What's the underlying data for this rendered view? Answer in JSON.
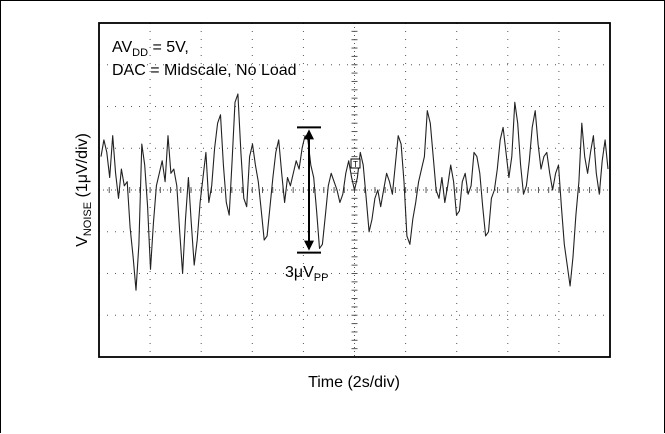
{
  "chart_data": {
    "type": "line",
    "annotation_line1_main": "AV",
    "annotation_line1_sub": "DD",
    "annotation_line1_rest": " = 5V,",
    "annotation_line2": "DAC = Midscale, No Load",
    "xlabel": "Time (2s/div)",
    "ylabel_main": "V",
    "ylabel_sub": "NOISE",
    "ylabel_rest": " (1μV/div)",
    "pp_label_main": "3μV",
    "pp_label_sub": "PP",
    "pp_top": 1.5,
    "pp_bottom": -1.5,
    "trigger_marker": "T",
    "grid": true,
    "xlim": [
      0,
      10
    ],
    "ylim": [
      -4,
      4
    ],
    "x_divisions": 10,
    "y_divisions": 8,
    "series": [
      {
        "values": [
          0.8,
          1.2,
          0.9,
          0.3,
          1.3,
          0.4,
          -0.2,
          0.5,
          0.1,
          0.2,
          -0.9,
          -1.6,
          -2.4,
          -1.3,
          1.1,
          0.6,
          -0.4,
          -1.9,
          -0.8,
          0.1,
          0.4,
          0.7,
          0.2,
          1.3,
          0.4,
          0.5,
          0.1,
          -1.0,
          -2.0,
          -0.7,
          0.3,
          -0.8,
          -1.8,
          -1.2,
          -0.3,
          0.3,
          0.9,
          -0.3,
          0.1,
          1.0,
          1.6,
          1.8,
          0.6,
          -0.3,
          -0.6,
          0.7,
          2.1,
          2.3,
          0.9,
          -0.2,
          -0.4,
          0.8,
          1.1,
          0.6,
          0.2,
          -0.5,
          -1.2,
          -1.1,
          -0.4,
          0.3,
          0.9,
          1.2,
          0.4,
          -0.3,
          0.3,
          0.1,
          0.4,
          0.7,
          0.5,
          1.0,
          1.3,
          1.2,
          0.6,
          0.3,
          -0.5,
          -1.4,
          -1.3,
          -0.6,
          0.1,
          0.4,
          0.2,
          0.0,
          -0.3,
          -0.1,
          0.4,
          0.7,
          0.3,
          0.0,
          0.3,
          0.9,
          0.6,
          -0.2,
          -1.0,
          -0.7,
          -0.2,
          0.0,
          -0.4,
          0.0,
          0.4,
          0.2,
          -0.1,
          0.6,
          1.3,
          1.1,
          0.2,
          -1.1,
          -1.3,
          -0.7,
          -0.3,
          0.2,
          0.5,
          0.8,
          1.9,
          1.6,
          0.8,
          0.0,
          -0.2,
          0.3,
          -0.3,
          0.1,
          0.6,
          0.2,
          -0.6,
          -0.5,
          0.2,
          0.4,
          -0.1,
          0.1,
          0.9,
          0.8,
          0.4,
          -0.4,
          -1.1,
          -1.0,
          -0.2,
          0.0,
          0.5,
          1.2,
          1.5,
          0.9,
          0.3,
          0.8,
          2.1,
          1.6,
          0.6,
          -0.1,
          0.1,
          0.7,
          1.5,
          1.9,
          1.1,
          0.5,
          0.8,
          0.9,
          0.4,
          0.0,
          0.4,
          0.6,
          -0.4,
          -1.3,
          -1.8,
          -2.3,
          -1.6,
          -0.6,
          0.2,
          1.6,
          0.8,
          0.4,
          0.9,
          1.3,
          0.4,
          -0.1,
          0.7,
          1.2,
          0.5
        ]
      }
    ]
  }
}
